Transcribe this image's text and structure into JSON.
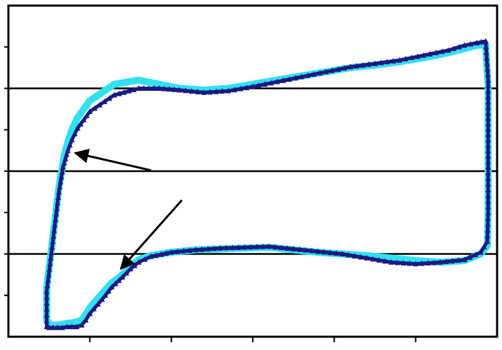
{
  "chart_data": {
    "type": "line",
    "title": "",
    "xlabel": "",
    "ylabel": "",
    "xlim": [
      0,
      600
    ],
    "ylim": [
      0,
      4
    ],
    "x_ticks": [
      100,
      200,
      300,
      400,
      500
    ],
    "y_gridlines": [
      1,
      2,
      3
    ],
    "grid": true,
    "legend": "none",
    "colors": {
      "light_series": "#33e0f0",
      "dark_series": "#1a1a80",
      "frame": "#000000",
      "arrow": "#000000"
    },
    "series": [
      {
        "marker": "square",
        "color": "#33e0f0",
        "x": [
          47,
          47,
          52,
          57,
          62,
          67,
          70,
          73,
          78,
          85,
          100,
          130,
          160,
          185,
          210,
          240,
          270,
          300,
          330,
          360,
          390,
          420,
          450,
          480,
          510,
          540,
          560,
          575,
          586,
          589,
          589,
          589,
          588,
          580,
          560,
          530,
          500,
          470,
          440,
          410,
          380,
          350,
          320,
          290,
          260,
          230,
          200,
          175,
          160,
          150,
          140,
          127,
          115,
          100,
          95,
          90,
          84,
          78,
          72,
          66,
          60,
          55,
          50,
          47
        ],
        "y": [
          0.2,
          0.6,
          1.0,
          1.4,
          1.8,
          2.1,
          2.25,
          2.35,
          2.5,
          2.65,
          2.85,
          3.05,
          3.1,
          3.05,
          3.0,
          2.98,
          3.0,
          3.05,
          3.1,
          3.15,
          3.2,
          3.25,
          3.28,
          3.32,
          3.37,
          3.43,
          3.48,
          3.52,
          3.53,
          3.0,
          2.0,
          1.5,
          1.1,
          1.0,
          0.92,
          0.9,
          0.92,
          0.95,
          0.98,
          1.0,
          1.02,
          1.05,
          1.08,
          1.07,
          1.06,
          1.05,
          1.02,
          0.98,
          0.93,
          0.85,
          0.75,
          0.65,
          0.52,
          0.35,
          0.27,
          0.2,
          0.18,
          0.17,
          0.16,
          0.15,
          0.14,
          0.14,
          0.15,
          0.2
        ]
      },
      {
        "marker": "triangle",
        "color": "#1a1a80",
        "x": [
          47,
          47,
          52,
          57,
          62,
          67,
          70,
          73,
          78,
          85,
          100,
          130,
          160,
          185,
          210,
          240,
          270,
          300,
          330,
          360,
          390,
          420,
          450,
          480,
          510,
          540,
          560,
          575,
          586,
          589,
          589,
          589,
          588,
          580,
          560,
          530,
          500,
          470,
          440,
          410,
          380,
          350,
          320,
          290,
          260,
          230,
          200,
          175,
          160,
          150,
          140,
          127,
          115,
          100,
          95,
          90,
          84,
          78,
          72,
          66,
          60,
          55,
          50,
          47
        ],
        "y": [
          0.12,
          0.55,
          0.95,
          1.35,
          1.75,
          2.05,
          2.15,
          2.25,
          2.38,
          2.52,
          2.72,
          2.92,
          3.0,
          3.0,
          2.98,
          2.95,
          2.97,
          3.02,
          3.08,
          3.14,
          3.2,
          3.26,
          3.3,
          3.34,
          3.4,
          3.46,
          3.52,
          3.55,
          3.57,
          3.1,
          2.05,
          1.5,
          1.15,
          1.02,
          0.93,
          0.9,
          0.88,
          0.9,
          0.95,
          1.0,
          1.03,
          1.06,
          1.09,
          1.08,
          1.07,
          1.05,
          1.02,
          0.97,
          0.9,
          0.82,
          0.72,
          0.6,
          0.45,
          0.28,
          0.2,
          0.14,
          0.12,
          0.12,
          0.12,
          0.11,
          0.11,
          0.11,
          0.11,
          0.12
        ]
      }
    ],
    "annotations": [
      {
        "type": "arrow",
        "from": [
          175,
          2.01
        ],
        "to": [
          82,
          2.22
        ]
      },
      {
        "type": "arrow",
        "from": [
          213,
          1.65
        ],
        "to": [
          138,
          0.82
        ]
      }
    ]
  }
}
